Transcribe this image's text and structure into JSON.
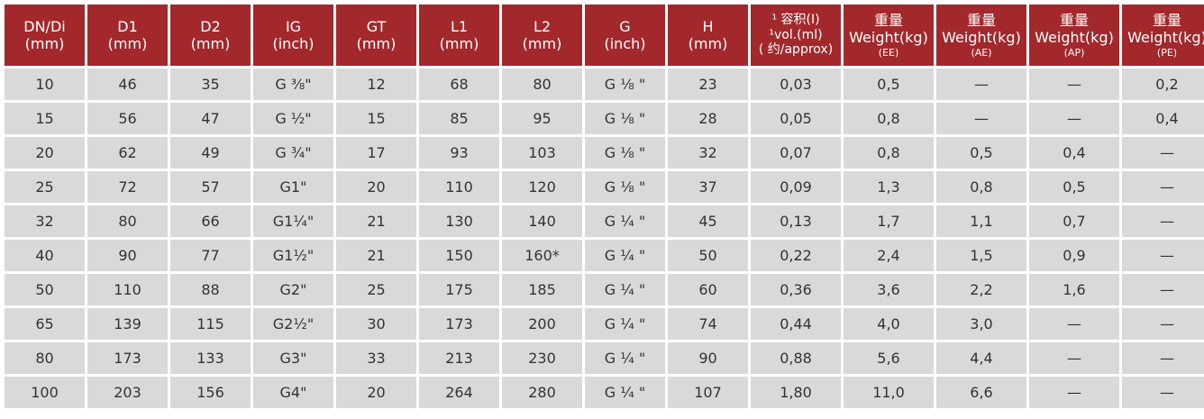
{
  "table": {
    "header": [
      [
        "DN/Di",
        "(mm)"
      ],
      [
        "D1",
        "(mm)"
      ],
      [
        "D2",
        "(mm)"
      ],
      [
        "IG",
        "(inch)"
      ],
      [
        "GT",
        "(mm)"
      ],
      [
        "L1",
        "(mm)"
      ],
      [
        "L2",
        "(mm)"
      ],
      [
        "G",
        "(inch)"
      ],
      [
        "H",
        "(mm)"
      ],
      [
        "¹ 容积(I)",
        "¹vol.(ml)",
        "( 约/approx)"
      ],
      [
        "重量",
        "Weight(kg)",
        "(EE)"
      ],
      [
        "重量",
        "Weight(kg)",
        "(AE)"
      ],
      [
        "重量",
        "Weight(kg)",
        "(AP)"
      ],
      [
        "重量",
        "Weight(kg)",
        "(PE)"
      ]
    ],
    "rows": [
      [
        "10",
        "46",
        "35",
        "G ⅜\"",
        "12",
        "68",
        "80",
        "G ⅛ \"",
        "23",
        "0,03",
        "0,5",
        "—",
        "—",
        "0,2"
      ],
      [
        "15",
        "56",
        "47",
        "G ½\"",
        "15",
        "85",
        "95",
        "G ⅛ \"",
        "28",
        "0,05",
        "0,8",
        "—",
        "—",
        "0,4"
      ],
      [
        "20",
        "62",
        "49",
        "G ¾\"",
        "17",
        "93",
        "103",
        "G ⅛ \"",
        "32",
        "0,07",
        "0,8",
        "0,5",
        "0,4",
        "—"
      ],
      [
        "25",
        "72",
        "57",
        "G1\"",
        "20",
        "110",
        "120",
        "G ⅛ \"",
        "37",
        "0,09",
        "1,3",
        "0,8",
        "0,5",
        "—"
      ],
      [
        "32",
        "80",
        "66",
        "G1¼\"",
        "21",
        "130",
        "140",
        "G ¼ \"",
        "45",
        "0,13",
        "1,7",
        "1,1",
        "0,7",
        "—"
      ],
      [
        "40",
        "90",
        "77",
        "G1½\"",
        "21",
        "150",
        "160*",
        "G ¼ \"",
        "50",
        "0,22",
        "2,4",
        "1,5",
        "0,9",
        "—"
      ],
      [
        "50",
        "110",
        "88",
        "G2\"",
        "25",
        "175",
        "185",
        "G ¼ \"",
        "60",
        "0,36",
        "3,6",
        "2,2",
        "1,6",
        "—"
      ],
      [
        "65",
        "139",
        "115",
        "G2½\"",
        "30",
        "173",
        "200",
        "G ¼ \"",
        "74",
        "0,44",
        "4,0",
        "3,0",
        "—",
        "—"
      ],
      [
        "80",
        "173",
        "133",
        "G3\"",
        "33",
        "213",
        "230",
        "G ¼ \"",
        "90",
        "0,88",
        "5,6",
        "4,4",
        "—",
        "—"
      ],
      [
        "100",
        "203",
        "156",
        "G4\"",
        "20",
        "264",
        "280",
        "G ¼ \"",
        "107",
        "1,80",
        "11,0",
        "6,6",
        "—",
        "—"
      ]
    ]
  }
}
